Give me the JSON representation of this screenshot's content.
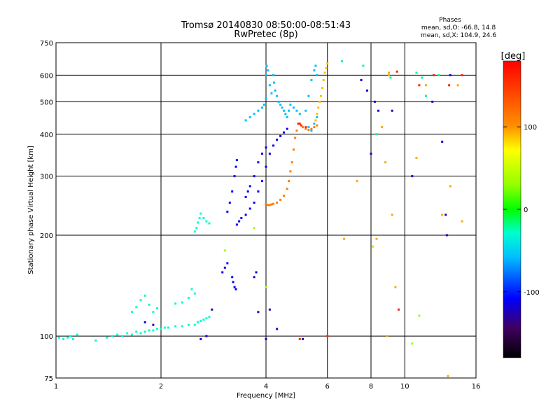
{
  "chart_data": {
    "type": "scatter",
    "title": "Tromsø 20140830 08:50:00-08:51:43",
    "subtitle": "RwPretec (8p)",
    "stats": {
      "heading": "Phases",
      "line1": "mean, sd,O: -66.8, 14.8",
      "line2": "mean, sd,X: 104.9, 24.6"
    },
    "xlabel": "Frequency [MHz]",
    "ylabel": "Stationary phase Virtual Height [km]",
    "x_scale": "log",
    "y_scale": "log",
    "xlim": [
      1,
      16
    ],
    "ylim": [
      75,
      750
    ],
    "x_ticks": [
      1,
      2,
      4,
      6,
      8,
      10,
      16
    ],
    "x_tick_labels": [
      "1",
      "2",
      "4",
      "6",
      "8",
      "10",
      "16"
    ],
    "y_ticks": [
      75,
      100,
      200,
      300,
      400,
      500,
      600,
      750
    ],
    "y_tick_labels": [
      "75",
      "100",
      "200",
      "300",
      "400",
      "500",
      "600",
      "750"
    ],
    "grid": true,
    "colorbar": {
      "label": "[deg]",
      "range": [
        -180,
        180
      ],
      "ticks": [
        100,
        0,
        -100
      ],
      "tick_labels": [
        "100",
        "0",
        "-100"
      ]
    },
    "series": [
      {
        "name": "",
        "color_value": -30,
        "points": [
          [
            1.02,
            99
          ],
          [
            1.05,
            98
          ],
          [
            1.08,
            99
          ],
          [
            1.1,
            100
          ],
          [
            1.12,
            98
          ],
          [
            1.15,
            101
          ],
          [
            1.3,
            97
          ],
          [
            1.4,
            99
          ],
          [
            1.45,
            100
          ],
          [
            1.5,
            101
          ],
          [
            1.55,
            100
          ],
          [
            1.6,
            102
          ],
          [
            1.65,
            101
          ],
          [
            1.7,
            103
          ],
          [
            1.75,
            102
          ],
          [
            1.8,
            103
          ],
          [
            1.85,
            104
          ],
          [
            1.9,
            104
          ],
          [
            1.95,
            105
          ],
          [
            2.0,
            105
          ],
          [
            2.05,
            106
          ],
          [
            2.1,
            106
          ],
          [
            2.2,
            107
          ],
          [
            2.3,
            107
          ],
          [
            2.4,
            108
          ],
          [
            2.5,
            108
          ],
          [
            2.55,
            110
          ],
          [
            2.6,
            111
          ],
          [
            2.65,
            112
          ],
          [
            2.7,
            113
          ],
          [
            2.75,
            114
          ],
          [
            1.65,
            118
          ],
          [
            1.7,
            122
          ],
          [
            1.75,
            128
          ],
          [
            1.8,
            132
          ],
          [
            1.85,
            124
          ],
          [
            1.9,
            118
          ],
          [
            1.95,
            121
          ],
          [
            2.2,
            125
          ],
          [
            2.3,
            126
          ],
          [
            2.4,
            130
          ],
          [
            2.45,
            138
          ],
          [
            2.5,
            134
          ],
          [
            2.5,
            205
          ],
          [
            2.53,
            210
          ],
          [
            2.55,
            218
          ],
          [
            2.58,
            225
          ],
          [
            2.6,
            232
          ],
          [
            2.65,
            225
          ],
          [
            2.7,
            220
          ],
          [
            2.75,
            217
          ]
        ]
      },
      {
        "name": "",
        "color_value": -60,
        "points": [
          [
            3.5,
            440
          ],
          [
            3.6,
            450
          ],
          [
            3.7,
            460
          ],
          [
            3.8,
            470
          ],
          [
            3.9,
            480
          ],
          [
            3.95,
            490
          ],
          [
            4.0,
            510
          ],
          [
            4.0,
            600
          ],
          [
            4.02,
            640
          ],
          [
            4.05,
            620
          ],
          [
            4.1,
            560
          ],
          [
            4.15,
            530
          ],
          [
            4.2,
            600
          ],
          [
            4.22,
            570
          ],
          [
            4.25,
            540
          ],
          [
            4.3,
            520
          ],
          [
            4.35,
            500
          ],
          [
            4.4,
            490
          ],
          [
            4.45,
            480
          ],
          [
            4.5,
            470
          ],
          [
            4.55,
            460
          ],
          [
            4.6,
            450
          ],
          [
            4.65,
            470
          ],
          [
            4.7,
            490
          ],
          [
            4.8,
            480
          ],
          [
            4.9,
            470
          ],
          [
            5.0,
            460
          ],
          [
            5.2,
            470
          ],
          [
            5.3,
            520
          ],
          [
            5.4,
            580
          ],
          [
            5.5,
            620
          ],
          [
            5.55,
            640
          ],
          [
            5.6,
            600
          ],
          [
            5.3,
            420
          ],
          [
            5.4,
            410
          ],
          [
            5.5,
            430
          ],
          [
            5.6,
            450
          ]
        ]
      },
      {
        "name": "",
        "color_value": -110,
        "points": [
          [
            3.1,
            235
          ],
          [
            3.15,
            250
          ],
          [
            3.2,
            270
          ],
          [
            3.25,
            300
          ],
          [
            3.28,
            320
          ],
          [
            3.3,
            335
          ],
          [
            3.3,
            215
          ],
          [
            3.35,
            220
          ],
          [
            3.4,
            225
          ],
          [
            3.5,
            230
          ],
          [
            3.6,
            240
          ],
          [
            3.7,
            250
          ],
          [
            3.8,
            270
          ],
          [
            3.9,
            290
          ],
          [
            4.0,
            320
          ],
          [
            4.1,
            350
          ],
          [
            4.2,
            370
          ],
          [
            4.3,
            385
          ],
          [
            4.4,
            395
          ],
          [
            4.5,
            405
          ],
          [
            4.6,
            415
          ],
          [
            3.2,
            150
          ],
          [
            3.22,
            145
          ],
          [
            3.25,
            140
          ],
          [
            3.28,
            138
          ],
          [
            3.0,
            155
          ],
          [
            3.05,
            160
          ],
          [
            3.1,
            165
          ],
          [
            3.5,
            260
          ],
          [
            3.55,
            270
          ],
          [
            3.6,
            280
          ],
          [
            3.7,
            300
          ],
          [
            3.8,
            330
          ],
          [
            3.9,
            350
          ],
          [
            4.0,
            365
          ]
        ]
      },
      {
        "name": "",
        "color_value": 130,
        "points": [
          [
            4.0,
            247
          ],
          [
            4.05,
            246
          ],
          [
            4.1,
            246
          ],
          [
            4.15,
            247
          ],
          [
            4.2,
            248
          ],
          [
            4.3,
            250
          ],
          [
            4.4,
            255
          ],
          [
            4.5,
            262
          ],
          [
            4.6,
            275
          ],
          [
            4.65,
            290
          ],
          [
            4.7,
            310
          ],
          [
            4.75,
            330
          ],
          [
            4.8,
            360
          ],
          [
            4.85,
            390
          ],
          [
            4.9,
            410
          ],
          [
            5.1,
            420
          ],
          [
            5.2,
            415
          ],
          [
            5.3,
            412
          ],
          [
            5.4,
            415
          ],
          [
            5.5,
            420
          ],
          [
            5.6,
            425
          ]
        ]
      },
      {
        "name": "",
        "color_value": 115,
        "points": [
          [
            5.55,
            440
          ],
          [
            5.6,
            460
          ],
          [
            5.65,
            480
          ],
          [
            5.7,
            500
          ],
          [
            5.75,
            520
          ],
          [
            5.8,
            550
          ],
          [
            5.85,
            580
          ],
          [
            5.9,
            610
          ],
          [
            5.95,
            630
          ],
          [
            6.0,
            650
          ]
        ]
      },
      {
        "name": "",
        "color_value": -20,
        "points": [
          [
            6.6,
            660
          ],
          [
            7.6,
            640
          ],
          [
            10.8,
            610
          ],
          [
            11.5,
            520
          ],
          [
            8.3,
            400
          ],
          [
            9.1,
            590
          ],
          [
            11.2,
            590
          ],
          [
            12.5,
            600
          ]
        ]
      },
      {
        "name": "",
        "color_value": 120,
        "points": [
          [
            7.3,
            290
          ],
          [
            6.7,
            195
          ],
          [
            8.3,
            195
          ],
          [
            9.0,
            610
          ],
          [
            8.6,
            420
          ],
          [
            8.8,
            330
          ],
          [
            9.2,
            230
          ],
          [
            9.4,
            140
          ],
          [
            8.9,
            100
          ],
          [
            10.8,
            340
          ],
          [
            11.5,
            560
          ],
          [
            12.8,
            230
          ],
          [
            13.5,
            280
          ],
          [
            14.2,
            560
          ],
          [
            14.6,
            220
          ],
          [
            13.3,
            76
          ],
          [
            9.0,
            600
          ]
        ]
      },
      {
        "name": "",
        "color_value": -120,
        "points": [
          [
            7.5,
            580
          ],
          [
            7.8,
            540
          ],
          [
            8.0,
            350
          ],
          [
            8.2,
            500
          ],
          [
            8.4,
            470
          ],
          [
            9.2,
            470
          ],
          [
            10.5,
            300
          ],
          [
            12.0,
            500
          ],
          [
            12.8,
            380
          ],
          [
            13.2,
            200
          ],
          [
            13.1,
            230
          ],
          [
            13.5,
            600
          ],
          [
            5.1,
            98
          ],
          [
            4.3,
            105
          ],
          [
            4.0,
            98
          ],
          [
            3.7,
            150
          ],
          [
            3.75,
            155
          ],
          [
            3.8,
            118
          ],
          [
            4.1,
            120
          ],
          [
            2.8,
            120
          ],
          [
            2.6,
            98
          ],
          [
            2.7,
            100
          ],
          [
            1.9,
            108
          ],
          [
            1.8,
            110
          ]
        ]
      },
      {
        "name": "",
        "color_value": 160,
        "points": [
          [
            5.2,
            420
          ],
          [
            5.05,
            425
          ],
          [
            4.95,
            430
          ],
          [
            5.0,
            430
          ],
          [
            9.5,
            615
          ],
          [
            11.0,
            560
          ],
          [
            12.1,
            600
          ],
          [
            13.4,
            560
          ],
          [
            14.6,
            600
          ],
          [
            5.0,
            98
          ],
          [
            6.0,
            100
          ],
          [
            9.6,
            120
          ]
        ]
      },
      {
        "name": "",
        "color_value": 40,
        "points": [
          [
            3.7,
            210
          ],
          [
            4.0,
            140
          ],
          [
            8.1,
            185
          ],
          [
            10.5,
            95
          ],
          [
            3.05,
            180
          ],
          [
            11.0,
            115
          ]
        ]
      }
    ]
  }
}
